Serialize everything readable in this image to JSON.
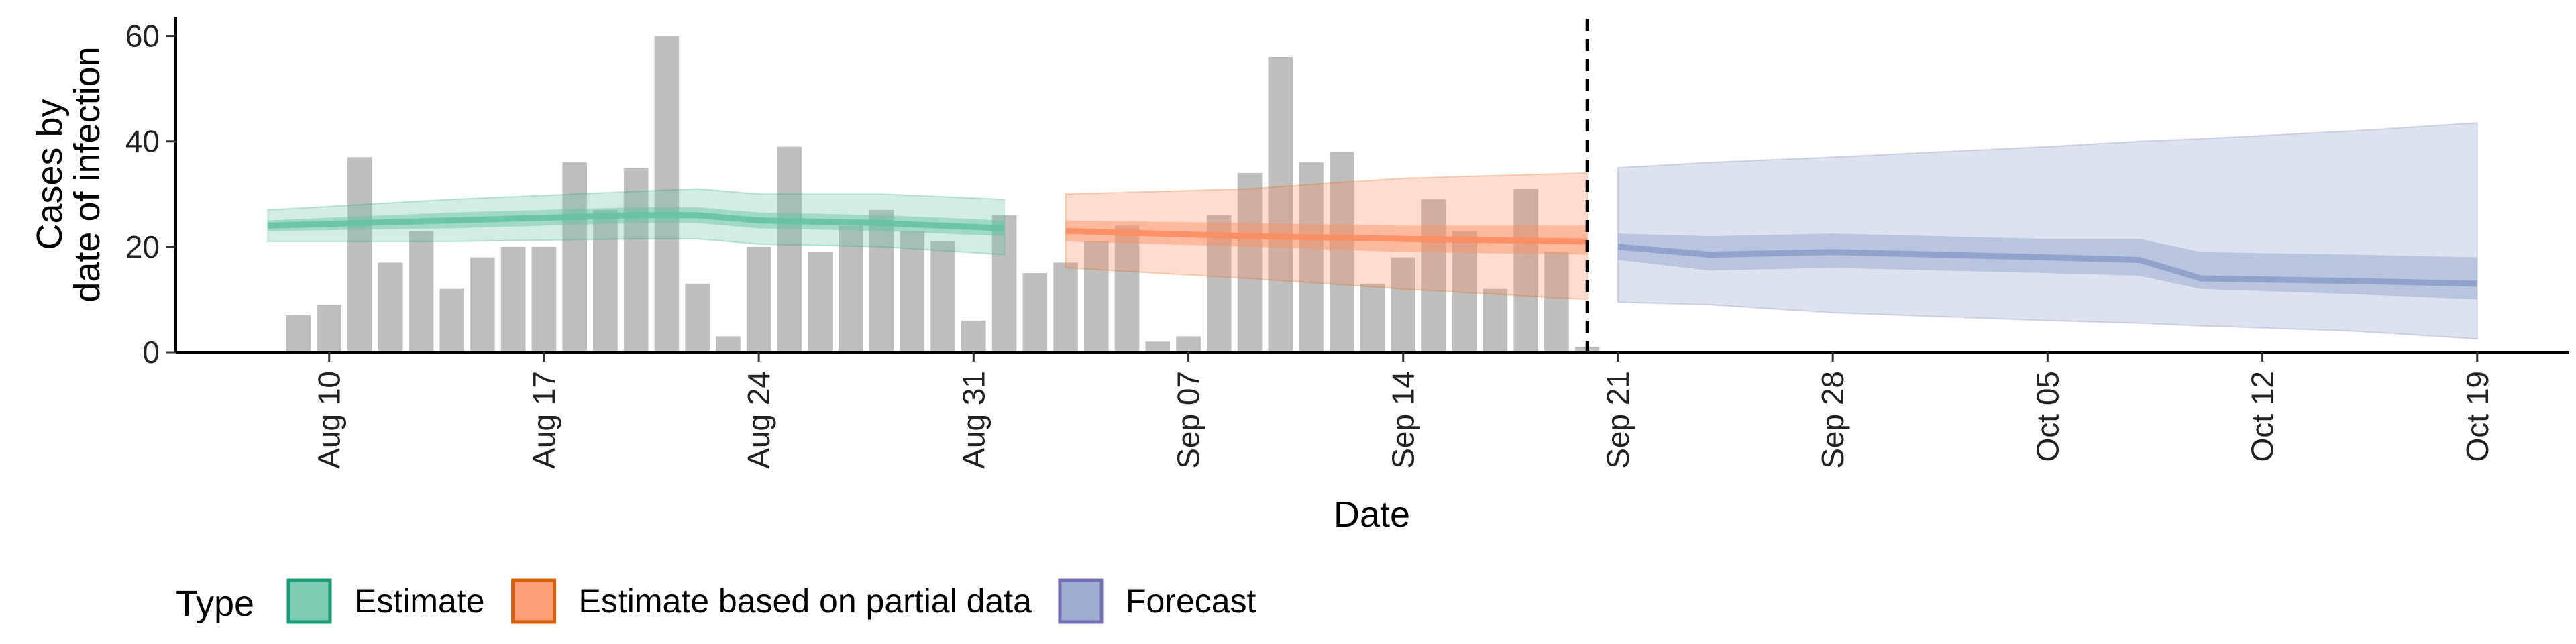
{
  "chart_data": {
    "type": "area",
    "ylabel_line1": "Cases by",
    "ylabel_line2": "date of infection",
    "xlabel": "Date",
    "ylim": [
      0,
      63
    ],
    "yticks": [
      0,
      20,
      40,
      60
    ],
    "xlim": [
      "2020-08-05",
      "2020-10-22"
    ],
    "xticks": [
      {
        "date": "2020-08-10",
        "label": "Aug 10"
      },
      {
        "date": "2020-08-17",
        "label": "Aug 17"
      },
      {
        "date": "2020-08-24",
        "label": "Aug 24"
      },
      {
        "date": "2020-08-31",
        "label": "Aug 31"
      },
      {
        "date": "2020-09-07",
        "label": "Sep 07"
      },
      {
        "date": "2020-09-14",
        "label": "Sep 14"
      },
      {
        "date": "2020-09-21",
        "label": "Sep 21"
      },
      {
        "date": "2020-09-28",
        "label": "Sep 28"
      },
      {
        "date": "2020-10-05",
        "label": "Oct 05"
      },
      {
        "date": "2020-10-12",
        "label": "Oct 12"
      },
      {
        "date": "2020-10-19",
        "label": "Oct 19"
      }
    ],
    "grid": false,
    "bars": {
      "color": "#bebebe",
      "start_date": "2020-08-09",
      "values": [
        7,
        9,
        37,
        17,
        23,
        12,
        18,
        20,
        20,
        36,
        27,
        35,
        60,
        13,
        3,
        20,
        39,
        19,
        24,
        27,
        23,
        21,
        6,
        26,
        15,
        17,
        21,
        24,
        2,
        3,
        26,
        34,
        56,
        36,
        38,
        13,
        18,
        29,
        23,
        12,
        31,
        19,
        1
      ]
    },
    "vline": {
      "date": "2020-09-20",
      "style": "dashed"
    },
    "series": [
      {
        "name": "Estimate",
        "fill": "#66c2a5",
        "stroke": "#1b9e77",
        "points": [
          {
            "date": "2020-08-08",
            "median": 24,
            "lo50": 23,
            "hi50": 25,
            "lo90": 21,
            "hi90": 27
          },
          {
            "date": "2020-08-14",
            "median": 25,
            "lo50": 23.5,
            "hi50": 26.5,
            "lo90": 21,
            "hi90": 29
          },
          {
            "date": "2020-08-20",
            "median": 26,
            "lo50": 24.5,
            "hi50": 27.5,
            "lo90": 21.5,
            "hi90": 30.5
          },
          {
            "date": "2020-08-22",
            "median": 26,
            "lo50": 24.5,
            "hi50": 27.5,
            "lo90": 21.5,
            "hi90": 31
          },
          {
            "date": "2020-08-24",
            "median": 25,
            "lo50": 23.5,
            "hi50": 26.5,
            "lo90": 20.5,
            "hi90": 30
          },
          {
            "date": "2020-08-28",
            "median": 24.5,
            "lo50": 23,
            "hi50": 26,
            "lo90": 20,
            "hi90": 30
          },
          {
            "date": "2020-09-01",
            "median": 23.5,
            "lo50": 22,
            "hi50": 25,
            "lo90": 18.5,
            "hi90": 29
          }
        ]
      },
      {
        "name": "Estimate based on partial data",
        "fill": "#fc8d62",
        "stroke": "#d95f02",
        "points": [
          {
            "date": "2020-09-03",
            "median": 23,
            "lo50": 21,
            "hi50": 25,
            "lo90": 16,
            "hi90": 30
          },
          {
            "date": "2020-09-09",
            "median": 22,
            "lo50": 20,
            "hi50": 24.5,
            "lo90": 14,
            "hi90": 31
          },
          {
            "date": "2020-09-14",
            "median": 21.5,
            "lo50": 19,
            "hi50": 24,
            "lo90": 12,
            "hi90": 33
          },
          {
            "date": "2020-09-20",
            "median": 21,
            "lo50": 18.5,
            "hi50": 24,
            "lo90": 10,
            "hi90": 34
          }
        ]
      },
      {
        "name": "Forecast",
        "fill": "#8da0cb",
        "stroke": "#7570b3",
        "points": [
          {
            "date": "2020-09-21",
            "median": 20,
            "lo50": 17.5,
            "hi50": 22.5,
            "lo90": 9.5,
            "hi90": 35
          },
          {
            "date": "2020-09-24",
            "median": 18.5,
            "lo50": 15.5,
            "hi50": 22,
            "lo90": 9,
            "hi90": 36
          },
          {
            "date": "2020-09-28",
            "median": 19,
            "lo50": 16,
            "hi50": 22.5,
            "lo90": 7.5,
            "hi90": 37
          },
          {
            "date": "2020-10-05",
            "median": 18,
            "lo50": 15,
            "hi50": 21.5,
            "lo90": 6,
            "hi90": 39
          },
          {
            "date": "2020-10-08",
            "median": 17.5,
            "lo50": 14.5,
            "hi50": 21.5,
            "lo90": 5.5,
            "hi90": 40
          },
          {
            "date": "2020-10-10",
            "median": 14,
            "lo50": 12,
            "hi50": 19,
            "lo90": 5,
            "hi90": 40.5
          },
          {
            "date": "2020-10-15",
            "median": 13.5,
            "lo50": 11,
            "hi50": 18.5,
            "lo90": 4,
            "hi90": 42
          },
          {
            "date": "2020-10-19",
            "median": 13,
            "lo50": 10,
            "hi50": 18,
            "lo90": 2.5,
            "hi90": 43.5
          }
        ]
      }
    ],
    "legend": {
      "title": "Type",
      "position": "bottom-left",
      "items": [
        {
          "label": "Estimate",
          "fill": "#66c2a5",
          "stroke": "#1b9e77"
        },
        {
          "label": "Estimate based on partial data",
          "fill": "#fc8d62",
          "stroke": "#d95f02"
        },
        {
          "label": "Forecast",
          "fill": "#8da0cb",
          "stroke": "#7570b3"
        }
      ]
    }
  }
}
